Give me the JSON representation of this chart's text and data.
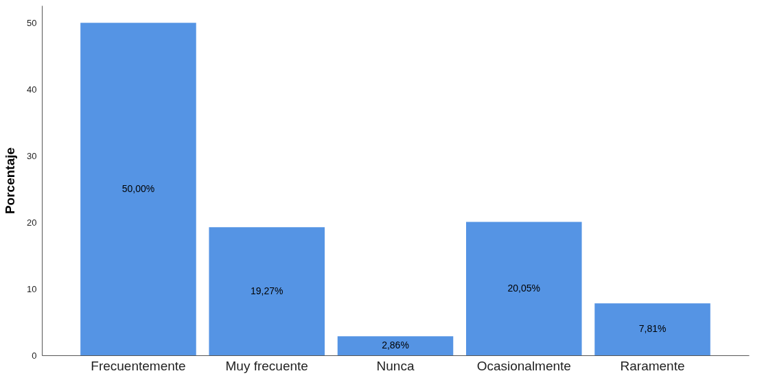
{
  "chart_data": {
    "type": "bar",
    "ylabel": "Porcentaje",
    "categories": [
      "Frecuentemente",
      "Muy frecuente",
      "Nunca",
      "Ocasionalmente",
      "Raramente"
    ],
    "values": [
      50.0,
      19.27,
      2.86,
      20.05,
      7.81
    ],
    "value_labels": [
      "50,00%",
      "19,27%",
      "2,86%",
      "20,05%",
      "7,81%"
    ],
    "color": "#5594e4",
    "ylim": [
      0,
      52.6
    ],
    "yticks": [
      0,
      10,
      20,
      30,
      40,
      50
    ],
    "grid": false
  }
}
